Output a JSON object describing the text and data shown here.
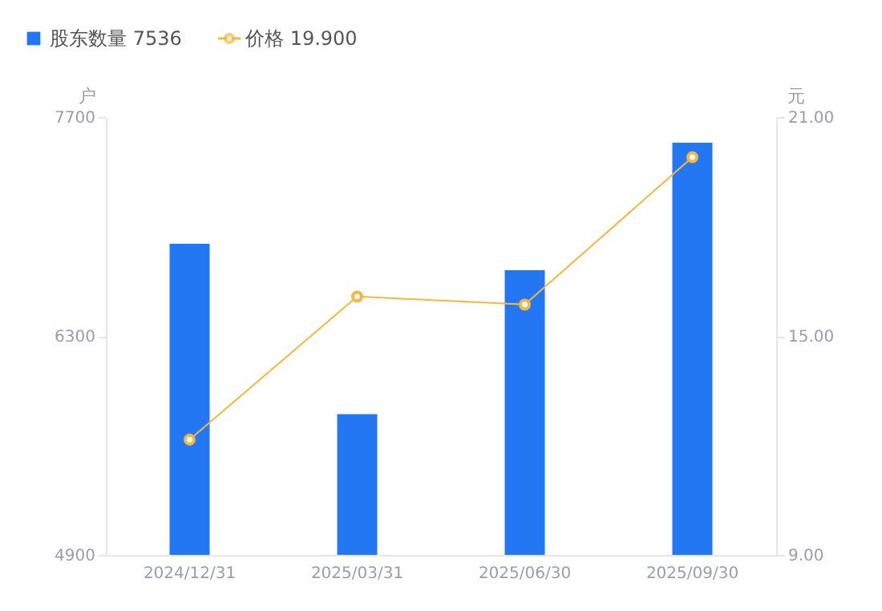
{
  "chart_data": {
    "type": "bar",
    "categories": [
      "2024/12/31",
      "2025/03/31",
      "2025/06/30",
      "2025/09/30"
    ],
    "series": [
      {
        "name": "股东数量 7536",
        "color": "#2477f2",
        "values": [
          6890,
          5800,
          6720,
          7536
        ]
      },
      {
        "name": "价格 19.900",
        "type": "line",
        "axis": "y2",
        "color": "#f7b73c",
        "values": [
          12.16,
          16.08,
          15.86,
          19.9
        ]
      }
    ],
    "ylabel": "户",
    "y2label": "元",
    "ylim": [
      4900,
      7700
    ],
    "yticks": [
      4900,
      6300,
      7700
    ],
    "y2lim": [
      9,
      21
    ],
    "y2ticks": [
      {
        "value": 9,
        "label": "9.00"
      },
      {
        "value": 15,
        "label": "15.00"
      },
      {
        "value": 21,
        "label": "21.00"
      }
    ],
    "grid": false,
    "legend": "top left",
    "marker": "circle",
    "line_style": "solid"
  }
}
